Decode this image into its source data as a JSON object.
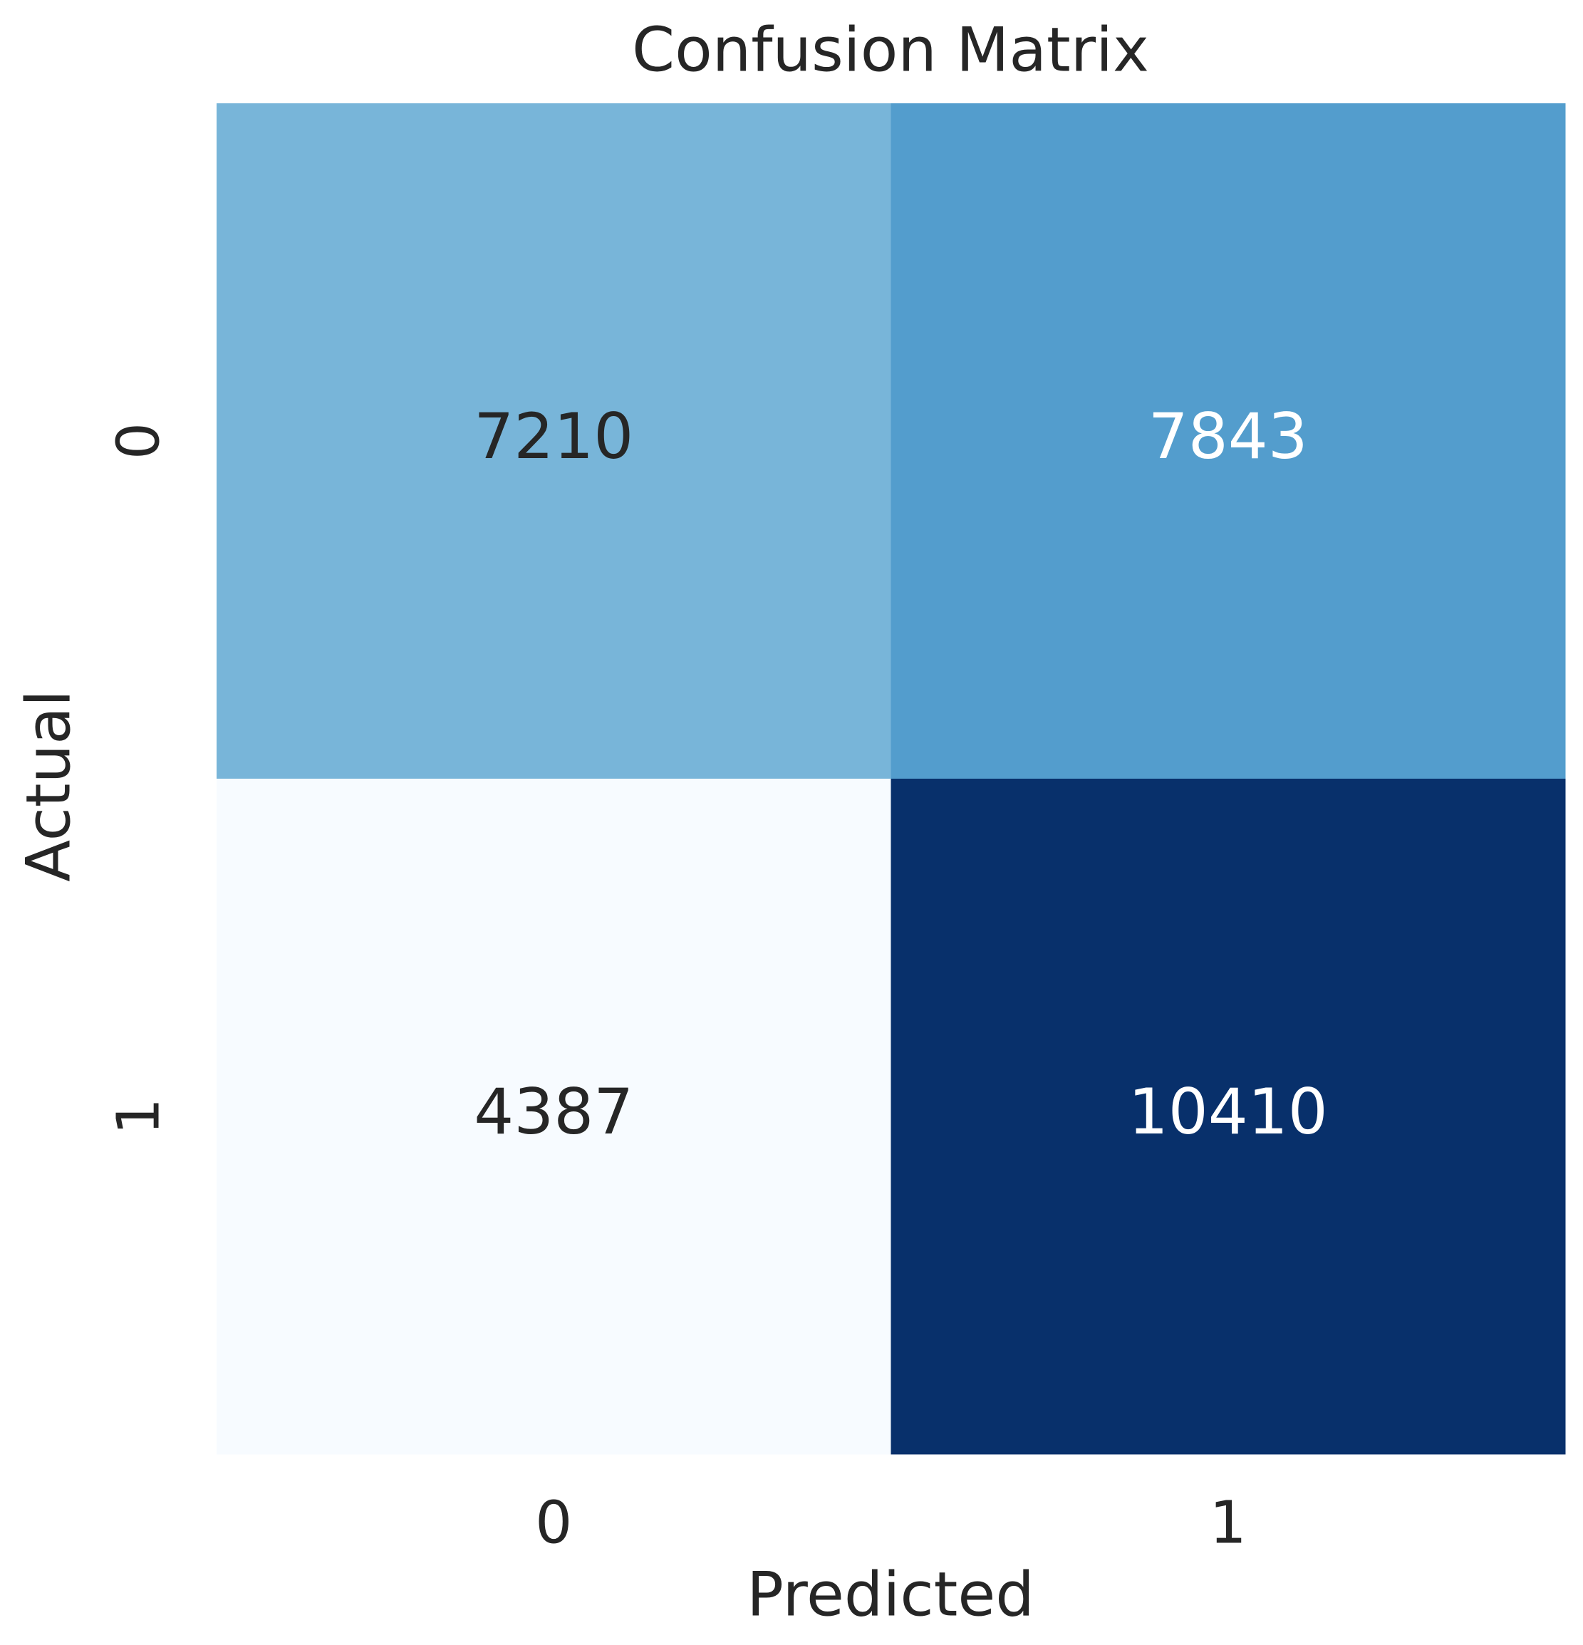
{
  "chart_data": {
    "type": "heatmap",
    "title": "Confusion Matrix",
    "x_label": "Predicted",
    "y_label": "Actual",
    "x_categories": [
      "0",
      "1"
    ],
    "y_categories": [
      "0",
      "1"
    ],
    "values": [
      [
        7210,
        7843
      ],
      [
        4387,
        10410
      ]
    ],
    "colormap": [
      "#f7fbff",
      "#deebf7",
      "#c6dbef",
      "#9ecae1",
      "#6baed6",
      "#4292c6",
      "#2171b5",
      "#08519c",
      "#08306b"
    ]
  }
}
